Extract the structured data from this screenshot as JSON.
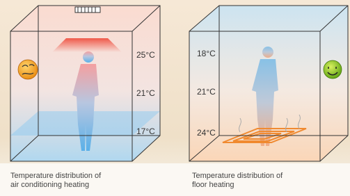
{
  "panels": [
    {
      "temperatures": [
        "25°C",
        "21°C",
        "17°C"
      ],
      "caption": [
        "Temperature distribution of",
        "air conditioning heating"
      ]
    },
    {
      "temperatures": [
        "18°C",
        "21°C",
        "24°C"
      ],
      "caption": [
        "Temperature distribution of",
        "floor heating"
      ]
    }
  ]
}
